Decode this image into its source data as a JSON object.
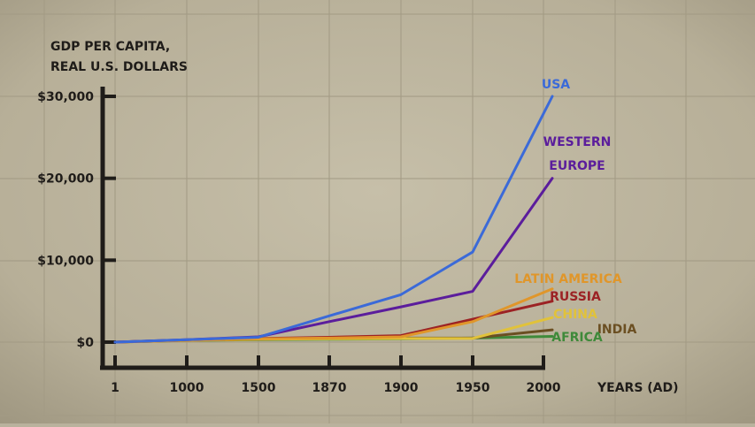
{
  "chart_data": {
    "type": "line",
    "ylabel_lines": [
      "GDP PER CAPITA,",
      "REAL U.S. DOLLARS"
    ],
    "xlabel": "YEARS (AD)",
    "categories": [
      "1",
      "1000",
      "1500",
      "1870",
      "1900",
      "1950",
      "2000"
    ],
    "yticks": [
      {
        "value": 0,
        "label": "$0"
      },
      {
        "value": 10000,
        "label": "$10,000"
      },
      {
        "value": 20000,
        "label": "$20,000"
      },
      {
        "value": 30000,
        "label": "$30,000"
      }
    ],
    "ylim": [
      0,
      30000
    ],
    "grid": true,
    "series": [
      {
        "name": "USA",
        "label_lines": [
          "USA"
        ],
        "color": "#3b6ad8",
        "values": [
          0,
          300,
          600,
          3200,
          5800,
          11000,
          30000
        ]
      },
      {
        "name": "WESTERN EUROPE",
        "label_lines": [
          "WESTERN",
          "EUROPE"
        ],
        "color": "#5b1d9c",
        "values": [
          0,
          300,
          650,
          2500,
          4300,
          6200,
          20000
        ]
      },
      {
        "name": "LATIN AMERICA",
        "label_lines": [
          "LATIN AMERICA"
        ],
        "color": "#e0962a",
        "values": [
          0,
          200,
          400,
          500,
          650,
          2500,
          6500
        ]
      },
      {
        "name": "RUSSIA",
        "label_lines": [
          "RUSSIA"
        ],
        "color": "#9c2224",
        "values": [
          0,
          250,
          450,
          600,
          800,
          2800,
          5000
        ]
      },
      {
        "name": "CHINA",
        "label_lines": [
          "CHINA"
        ],
        "color": "#e1c23a",
        "values": [
          0,
          250,
          350,
          400,
          450,
          450,
          3000
        ]
      },
      {
        "name": "INDIA",
        "label_lines": [
          "INDIA"
        ],
        "color": "#6b4f22",
        "values": [
          0,
          250,
          350,
          450,
          500,
          500,
          1500
        ]
      },
      {
        "name": "AFRICA",
        "label_lines": [
          "AFRICA"
        ],
        "color": "#3f8a3a",
        "values": [
          0,
          200,
          300,
          350,
          400,
          500,
          700
        ]
      }
    ]
  }
}
